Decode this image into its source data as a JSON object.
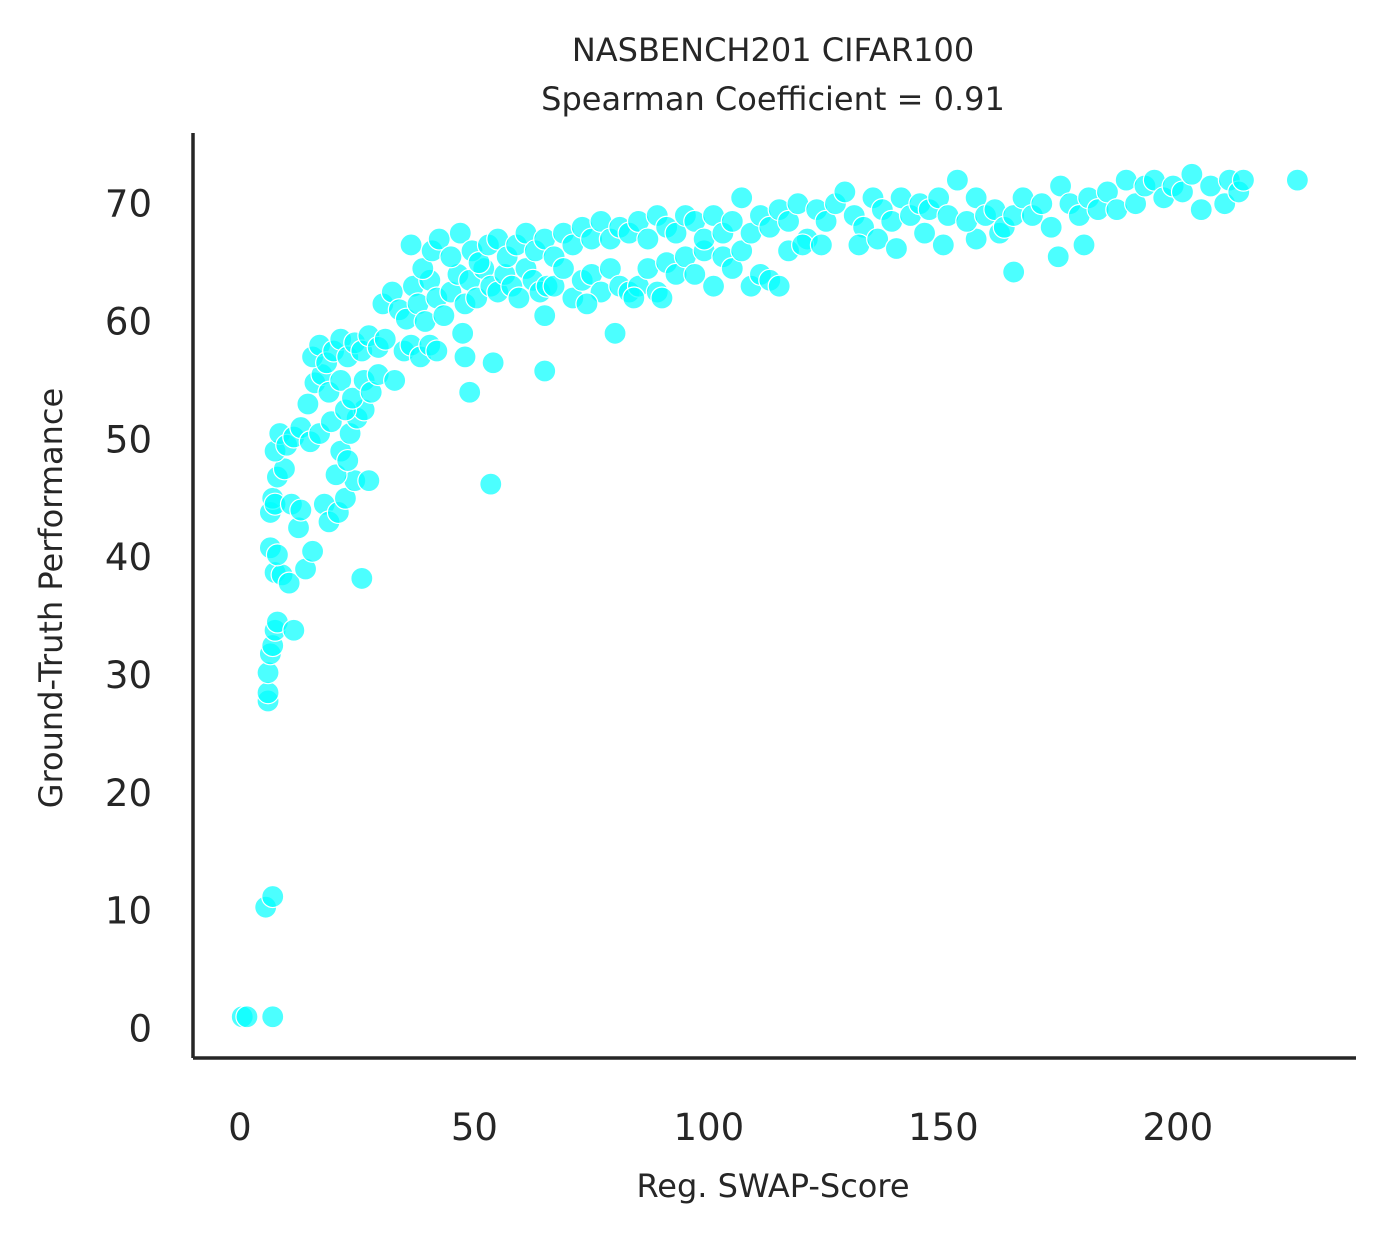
{
  "chart_data": {
    "type": "scatter",
    "title": "NASBENCH201 CIFAR100",
    "subtitle": "Spearman Coefficient = 0.91",
    "xlabel": "Reg. SWAP-Score",
    "ylabel": "Ground-Truth Performance",
    "xlim": [
      -10,
      238
    ],
    "ylim": [
      -2.5,
      76
    ],
    "xticks": [
      0,
      50,
      100,
      150,
      200
    ],
    "yticks": [
      0,
      10,
      20,
      30,
      40,
      50,
      60,
      70
    ],
    "grid": false,
    "marker_color": "#00FFFF",
    "marker_edge_color": "#ffffff",
    "marker_alpha": 0.7,
    "points": [
      [
        0.5,
        1.0
      ],
      [
        1.5,
        1.0
      ],
      [
        7.0,
        1.0
      ],
      [
        5.5,
        10.3
      ],
      [
        7.0,
        11.2
      ],
      [
        6.0,
        27.8
      ],
      [
        6.0,
        28.5
      ],
      [
        6.0,
        30.2
      ],
      [
        6.5,
        31.8
      ],
      [
        7.0,
        32.5
      ],
      [
        7.5,
        33.8
      ],
      [
        8.0,
        34.5
      ],
      [
        11.5,
        33.8
      ],
      [
        7.5,
        38.7
      ],
      [
        9.0,
        38.5
      ],
      [
        10.5,
        37.8
      ],
      [
        14.0,
        39.0
      ],
      [
        15.5,
        40.5
      ],
      [
        6.5,
        40.8
      ],
      [
        8.0,
        40.2
      ],
      [
        26.0,
        38.2
      ],
      [
        6.5,
        43.8
      ],
      [
        7.0,
        45.0
      ],
      [
        7.5,
        44.5
      ],
      [
        8.0,
        46.8
      ],
      [
        9.5,
        47.5
      ],
      [
        11.0,
        44.5
      ],
      [
        12.5,
        42.5
      ],
      [
        13.0,
        44.0
      ],
      [
        18.0,
        44.5
      ],
      [
        19.0,
        43.0
      ],
      [
        21.0,
        43.8
      ],
      [
        22.5,
        45.0
      ],
      [
        24.5,
        46.5
      ],
      [
        27.5,
        46.5
      ],
      [
        20.5,
        47.0
      ],
      [
        7.5,
        49.0
      ],
      [
        8.5,
        50.5
      ],
      [
        10.0,
        49.5
      ],
      [
        11.5,
        50.2
      ],
      [
        13.0,
        51.0
      ],
      [
        15.0,
        49.8
      ],
      [
        17.0,
        50.5
      ],
      [
        19.5,
        51.5
      ],
      [
        21.5,
        49.0
      ],
      [
        23.5,
        50.5
      ],
      [
        25.0,
        51.8
      ],
      [
        23.0,
        48.2
      ],
      [
        26.5,
        52.5
      ],
      [
        14.5,
        53.0
      ],
      [
        16.0,
        54.8
      ],
      [
        17.5,
        55.5
      ],
      [
        19.0,
        54.0
      ],
      [
        21.5,
        55.0
      ],
      [
        22.5,
        52.5
      ],
      [
        24.0,
        53.5
      ],
      [
        26.5,
        55.0
      ],
      [
        28.0,
        54.0
      ],
      [
        29.5,
        55.5
      ],
      [
        15.5,
        57.0
      ],
      [
        17.0,
        58.0
      ],
      [
        18.5,
        56.5
      ],
      [
        20.0,
        57.5
      ],
      [
        21.5,
        58.5
      ],
      [
        23.0,
        57.0
      ],
      [
        24.5,
        58.2
      ],
      [
        26.0,
        57.5
      ],
      [
        27.5,
        58.8
      ],
      [
        29.5,
        57.8
      ],
      [
        31.0,
        58.5
      ],
      [
        33.0,
        55.0
      ],
      [
        35.0,
        57.5
      ],
      [
        36.5,
        58.0
      ],
      [
        38.5,
        57.0
      ],
      [
        40.5,
        58.0
      ],
      [
        42.0,
        57.5
      ],
      [
        30.5,
        61.5
      ],
      [
        32.5,
        62.5
      ],
      [
        34.0,
        61.0
      ],
      [
        35.5,
        60.2
      ],
      [
        37.0,
        63.0
      ],
      [
        38.0,
        61.5
      ],
      [
        39.5,
        60.0
      ],
      [
        40.5,
        63.5
      ],
      [
        42.0,
        62.0
      ],
      [
        43.5,
        60.5
      ],
      [
        45.0,
        62.5
      ],
      [
        46.5,
        64.0
      ],
      [
        48.0,
        61.5
      ],
      [
        49.0,
        63.5
      ],
      [
        50.5,
        62.0
      ],
      [
        52.0,
        64.5
      ],
      [
        53.5,
        63.0
      ],
      [
        55.0,
        62.5
      ],
      [
        56.5,
        64.0
      ],
      [
        58.0,
        63.0
      ],
      [
        59.5,
        62.0
      ],
      [
        61.0,
        64.5
      ],
      [
        62.5,
        63.5
      ],
      [
        64.0,
        62.5
      ],
      [
        65.5,
        63.0
      ],
      [
        36.5,
        66.5
      ],
      [
        39.0,
        64.5
      ],
      [
        41.0,
        66.0
      ],
      [
        42.5,
        67.0
      ],
      [
        45.0,
        65.5
      ],
      [
        47.0,
        67.5
      ],
      [
        49.5,
        66.0
      ],
      [
        51.0,
        65.0
      ],
      [
        53.0,
        66.5
      ],
      [
        55.0,
        67.0
      ],
      [
        57.0,
        65.5
      ],
      [
        59.0,
        66.5
      ],
      [
        61.0,
        67.5
      ],
      [
        63.0,
        66.0
      ],
      [
        65.0,
        67.0
      ],
      [
        67.0,
        65.5
      ],
      [
        69.0,
        67.5
      ],
      [
        71.0,
        66.5
      ],
      [
        73.0,
        68.0
      ],
      [
        75.0,
        67.0
      ],
      [
        77.0,
        68.5
      ],
      [
        79.0,
        67.0
      ],
      [
        81.0,
        68.0
      ],
      [
        83.0,
        67.5
      ],
      [
        85.0,
        68.5
      ],
      [
        87.0,
        67.0
      ],
      [
        89.0,
        69.0
      ],
      [
        91.0,
        68.0
      ],
      [
        93.0,
        67.5
      ],
      [
        95.0,
        69.0
      ],
      [
        67.0,
        63.0
      ],
      [
        69.0,
        64.5
      ],
      [
        71.0,
        62.0
      ],
      [
        73.0,
        63.5
      ],
      [
        75.0,
        64.0
      ],
      [
        77.0,
        62.5
      ],
      [
        79.0,
        64.5
      ],
      [
        81.0,
        63.0
      ],
      [
        83.0,
        62.5
      ],
      [
        85.0,
        63.0
      ],
      [
        87.0,
        64.5
      ],
      [
        89.0,
        62.5
      ],
      [
        91.0,
        65.0
      ],
      [
        93.0,
        64.0
      ],
      [
        95.0,
        65.5
      ],
      [
        97.0,
        64.0
      ],
      [
        99.0,
        66.0
      ],
      [
        101.0,
        63.0
      ],
      [
        103.0,
        65.5
      ],
      [
        105.0,
        64.5
      ],
      [
        107.0,
        66.0
      ],
      [
        109.0,
        63.0
      ],
      [
        111.0,
        64.0
      ],
      [
        113.0,
        63.5
      ],
      [
        115.0,
        63.0
      ],
      [
        65.0,
        60.5
      ],
      [
        74.0,
        61.5
      ],
      [
        80.0,
        59.0
      ],
      [
        84.0,
        62.0
      ],
      [
        90.0,
        62.0
      ],
      [
        47.5,
        59.0
      ],
      [
        48.0,
        57.0
      ],
      [
        49.0,
        54.0
      ],
      [
        54.0,
        56.5
      ],
      [
        53.5,
        46.2
      ],
      [
        65.0,
        55.8
      ],
      [
        97.0,
        68.5
      ],
      [
        99.0,
        67.0
      ],
      [
        101.0,
        69.0
      ],
      [
        103.0,
        67.5
      ],
      [
        105.0,
        68.5
      ],
      [
        107.0,
        70.5
      ],
      [
        109.0,
        67.5
      ],
      [
        111.0,
        69.0
      ],
      [
        113.0,
        68.0
      ],
      [
        115.0,
        69.5
      ],
      [
        117.0,
        68.5
      ],
      [
        119.0,
        70.0
      ],
      [
        121.0,
        67.0
      ],
      [
        123.0,
        69.5
      ],
      [
        125.0,
        68.5
      ],
      [
        127.0,
        70.0
      ],
      [
        129.0,
        71.0
      ],
      [
        131.0,
        69.0
      ],
      [
        133.0,
        68.0
      ],
      [
        135.0,
        70.5
      ],
      [
        137.0,
        69.5
      ],
      [
        139.0,
        68.5
      ],
      [
        141.0,
        70.5
      ],
      [
        143.0,
        69.0
      ],
      [
        145.0,
        70.0
      ],
      [
        117.0,
        66.0
      ],
      [
        120.0,
        66.5
      ],
      [
        124.0,
        66.5
      ],
      [
        132.0,
        66.5
      ],
      [
        136.0,
        67.0
      ],
      [
        140.0,
        66.2
      ],
      [
        146.0,
        67.5
      ],
      [
        150.0,
        66.5
      ],
      [
        157.0,
        67.0
      ],
      [
        162.0,
        67.5
      ],
      [
        147.0,
        69.5
      ],
      [
        149.0,
        70.5
      ],
      [
        151.0,
        69.0
      ],
      [
        153.0,
        72.0
      ],
      [
        155.0,
        68.5
      ],
      [
        157.0,
        70.5
      ],
      [
        159.0,
        69.0
      ],
      [
        161.0,
        69.5
      ],
      [
        163.0,
        68.0
      ],
      [
        165.0,
        69.0
      ],
      [
        167.0,
        70.5
      ],
      [
        169.0,
        69.0
      ],
      [
        171.0,
        70.0
      ],
      [
        173.0,
        68.0
      ],
      [
        175.0,
        71.5
      ],
      [
        177.0,
        70.0
      ],
      [
        179.0,
        69.0
      ],
      [
        181.0,
        70.5
      ],
      [
        183.0,
        69.5
      ],
      [
        185.0,
        71.0
      ],
      [
        187.0,
        69.5
      ],
      [
        189.0,
        72.0
      ],
      [
        191.0,
        70.0
      ],
      [
        193.0,
        71.5
      ],
      [
        195.0,
        72.0
      ],
      [
        165.0,
        64.2
      ],
      [
        174.5,
        65.5
      ],
      [
        180.0,
        66.5
      ],
      [
        197.0,
        70.5
      ],
      [
        199.0,
        71.5
      ],
      [
        201.0,
        71.0
      ],
      [
        203.0,
        72.5
      ],
      [
        205.0,
        69.5
      ],
      [
        207.0,
        71.5
      ],
      [
        210.0,
        70.0
      ],
      [
        211.0,
        72.0
      ],
      [
        213.0,
        71.0
      ],
      [
        214.0,
        72.0
      ],
      [
        225.5,
        72.0
      ]
    ]
  }
}
